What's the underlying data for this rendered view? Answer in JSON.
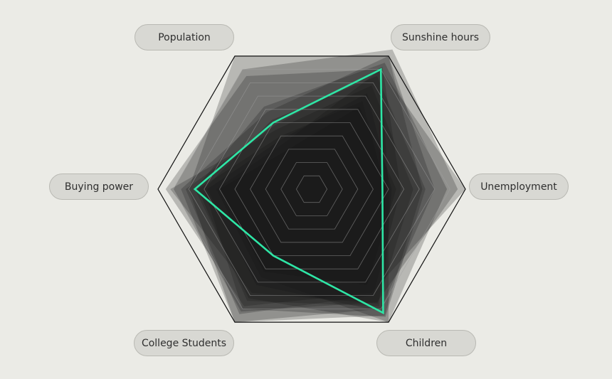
{
  "chart_data": {
    "type": "radar",
    "axes": [
      "Population",
      "Sunshine hours",
      "Unemployment",
      "Children",
      "College Students",
      "Buying power"
    ],
    "rmax": 1.0,
    "grid_levels": 10,
    "grid": true,
    "highlight_color": "#2ee6a6",
    "series": [
      {
        "values": [
          1.0,
          1.0,
          0.72,
          0.95,
          1.0,
          0.8
        ]
      },
      {
        "values": [
          0.9,
          1.05,
          0.95,
          0.85,
          0.92,
          0.9
        ]
      },
      {
        "values": [
          0.85,
          0.9,
          1.0,
          0.78,
          0.88,
          0.95
        ]
      },
      {
        "values": [
          0.62,
          0.95,
          0.88,
          1.0,
          0.82,
          0.76
        ]
      },
      {
        "values": [
          0.58,
          1.0,
          0.8,
          0.9,
          1.0,
          0.85
        ]
      },
      {
        "values": [
          0.52,
          0.85,
          0.74,
          0.96,
          0.9,
          0.7
        ]
      },
      {
        "values": [
          0.45,
          0.78,
          0.66,
          0.86,
          0.78,
          0.92
        ]
      },
      {
        "values": [
          0.48,
          0.92,
          0.58,
          0.8,
          0.94,
          0.82
        ]
      },
      {
        "values": [
          0.38,
          0.72,
          0.52,
          0.92,
          0.72,
          0.68
        ]
      },
      {
        "values": [
          0.4,
          0.66,
          0.48,
          0.88,
          0.84,
          0.74
        ]
      },
      {
        "values": [
          0.3,
          0.62,
          0.55,
          0.72,
          0.62,
          0.6
        ]
      },
      {
        "values": [
          0.35,
          0.9,
          0.5,
          1.0,
          0.66,
          0.62
        ]
      }
    ],
    "highlight": {
      "values": [
        0.5,
        0.9,
        0.46,
        0.93,
        0.5,
        0.76
      ]
    }
  }
}
